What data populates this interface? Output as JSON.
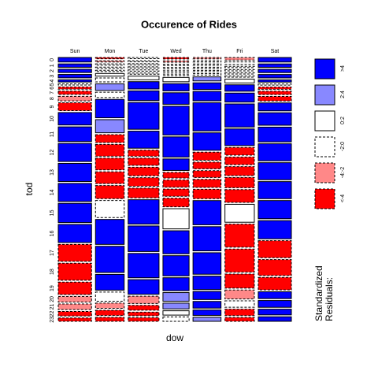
{
  "chart_data": {
    "type": "mosaic",
    "title": "Occurence of Rides",
    "xlabel": "dow",
    "ylabel": "tod",
    "categories": [
      0,
      1,
      2,
      3,
      4,
      5,
      6,
      7,
      8,
      9,
      10,
      11,
      12,
      13,
      14,
      15,
      16,
      17,
      18,
      19,
      20,
      21,
      22,
      23
    ],
    "series": [
      {
        "name": "Sun",
        "values": [
          4,
          3,
          3,
          3,
          2,
          1,
          2,
          3,
          4,
          7,
          11,
          13,
          16,
          16,
          16,
          17,
          16,
          15,
          15,
          11,
          5,
          5,
          4,
          3
        ],
        "residuals": [
          5,
          5,
          5,
          5,
          5,
          -1,
          -5,
          -5,
          -3,
          -5,
          5,
          5,
          5,
          5,
          5,
          5,
          5,
          -5,
          -5,
          -5,
          -3,
          -3,
          -5,
          -5
        ]
      },
      {
        "name": "Mon",
        "values": [
          1,
          1,
          1,
          1,
          1,
          2,
          3,
          5,
          4,
          14,
          10,
          6,
          9,
          9,
          9,
          10,
          13,
          19,
          20,
          12,
          7,
          4,
          4,
          3
        ],
        "residuals": [
          -5,
          -3,
          -1,
          -1,
          -1,
          1,
          -1,
          3,
          -1,
          5,
          3,
          -5,
          -5,
          -5,
          -5,
          -5,
          -1,
          5,
          5,
          5,
          -1,
          -3,
          -5,
          -5
        ]
      },
      {
        "name": "Tue",
        "values": [
          1,
          1,
          1,
          1,
          1,
          1,
          3,
          6,
          8,
          22,
          14,
          5,
          6,
          7,
          7,
          8,
          20,
          21,
          20,
          12,
          6,
          4,
          3,
          3
        ],
        "residuals": [
          -1,
          -1,
          -1,
          -1,
          -1,
          -1,
          1,
          5,
          5,
          5,
          5,
          -5,
          -5,
          -5,
          -5,
          -5,
          5,
          5,
          5,
          5,
          -3,
          -5,
          -5,
          -5
        ]
      },
      {
        "name": "Wed",
        "values": [
          1,
          1,
          1,
          1,
          1,
          1,
          3,
          5,
          8,
          20,
          14,
          8,
          4,
          5,
          5,
          6,
          14,
          16,
          14,
          9,
          6,
          4,
          3,
          3
        ],
        "residuals": [
          -5,
          -3,
          -1,
          -1,
          -1,
          -1,
          1,
          5,
          5,
          5,
          5,
          5,
          -5,
          -5,
          -5,
          -5,
          1,
          5,
          5,
          5,
          3,
          3,
          1,
          -1
        ]
      },
      {
        "name": "Thu",
        "values": [
          1,
          1,
          1,
          1,
          1,
          1,
          3,
          5,
          7,
          21,
          13,
          6,
          5,
          5,
          6,
          7,
          18,
          18,
          16,
          10,
          6,
          5,
          4,
          3
        ],
        "residuals": [
          -3,
          -1,
          -1,
          -1,
          -1,
          -1,
          3,
          5,
          5,
          5,
          5,
          -5,
          -5,
          -5,
          -5,
          -5,
          5,
          5,
          5,
          5,
          5,
          5,
          5,
          3
        ]
      },
      {
        "name": "Fri",
        "values": [
          2,
          2,
          1,
          1,
          1,
          1,
          3,
          5,
          7,
          18,
          13,
          6,
          6,
          7,
          8,
          10,
          14,
          18,
          18,
          11,
          7,
          5,
          5,
          3
        ],
        "residuals": [
          -3,
          -1,
          -1,
          -1,
          -1,
          -1,
          1,
          5,
          5,
          5,
          5,
          -5,
          -5,
          -5,
          -5,
          -5,
          1,
          -5,
          -5,
          -5,
          -3,
          -1,
          -5,
          -5
        ]
      },
      {
        "name": "Sat",
        "values": [
          4,
          3,
          3,
          3,
          2,
          1,
          2,
          3,
          4,
          7,
          11,
          13,
          15,
          15,
          15,
          16,
          16,
          15,
          14,
          11,
          6,
          6,
          5,
          4
        ],
        "residuals": [
          5,
          5,
          5,
          5,
          5,
          -1,
          -5,
          -5,
          -5,
          5,
          5,
          5,
          5,
          5,
          5,
          5,
          5,
          -5,
          -5,
          -5,
          5,
          5,
          5,
          5
        ]
      }
    ],
    "legend_title": "Standardized\nResiduals:",
    "legend": [
      {
        "label": ">4",
        "min": 4,
        "color": "#0000ff",
        "dashed": false
      },
      {
        "label": "2:4",
        "min": 2,
        "color": "#8888ff",
        "dashed": false
      },
      {
        "label": "0:2",
        "min": 0,
        "color": "#ffffff",
        "dashed": false
      },
      {
        "label": "-2:0",
        "min": -2,
        "color": "#ffffff",
        "dashed": true
      },
      {
        "label": "-4:-2",
        "min": -4,
        "color": "#ff8888",
        "dashed": true
      },
      {
        "label": "<-4",
        "min": -1000,
        "color": "#ff0000",
        "dashed": true
      }
    ]
  }
}
